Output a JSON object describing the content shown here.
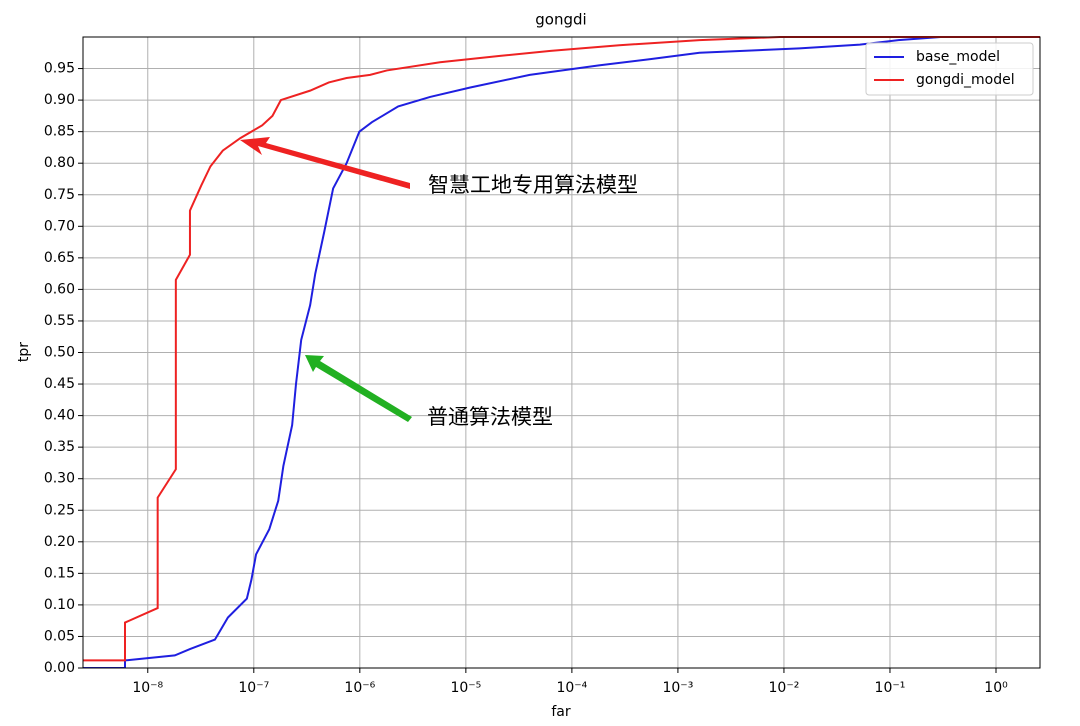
{
  "chart_data": {
    "type": "line",
    "title": "gongdi",
    "x_label": "far",
    "y_label": "tpr",
    "x_scale": "log",
    "grid": true,
    "legend": "upper right",
    "xlim": [
      2.45e-09,
      2.6
    ],
    "ylim": [
      0,
      1.0
    ],
    "xticks": [
      {
        "value": 1e-08,
        "label": "10⁻⁸"
      },
      {
        "value": 1e-07,
        "label": "10⁻⁷"
      },
      {
        "value": 1e-06,
        "label": "10⁻⁶"
      },
      {
        "value": 1e-05,
        "label": "10⁻⁵"
      },
      {
        "value": 0.0001,
        "label": "10⁻⁴"
      },
      {
        "value": 0.001,
        "label": "10⁻³"
      },
      {
        "value": 0.01,
        "label": "10⁻²"
      },
      {
        "value": 0.1,
        "label": "10⁻¹"
      },
      {
        "value": 1,
        "label": "10⁰"
      }
    ],
    "yticks": [
      {
        "value": 0,
        "label": "0.00"
      },
      {
        "value": 0.05,
        "label": "0.05"
      },
      {
        "value": 0.1,
        "label": "0.10"
      },
      {
        "value": 0.15,
        "label": "0.15"
      },
      {
        "value": 0.2,
        "label": "0.20"
      },
      {
        "value": 0.25,
        "label": "0.25"
      },
      {
        "value": 0.3,
        "label": "0.30"
      },
      {
        "value": 0.35,
        "label": "0.35"
      },
      {
        "value": 0.4,
        "label": "0.40"
      },
      {
        "value": 0.45,
        "label": "0.45"
      },
      {
        "value": 0.5,
        "label": "0.50"
      },
      {
        "value": 0.55,
        "label": "0.55"
      },
      {
        "value": 0.6,
        "label": "0.60"
      },
      {
        "value": 0.65,
        "label": "0.65"
      },
      {
        "value": 0.7,
        "label": "0.70"
      },
      {
        "value": 0.75,
        "label": "0.75"
      },
      {
        "value": 0.8,
        "label": "0.80"
      },
      {
        "value": 0.85,
        "label": "0.85"
      },
      {
        "value": 0.9,
        "label": "0.90"
      },
      {
        "value": 0.95,
        "label": "0.95"
      }
    ],
    "series": [
      {
        "name": "base_model",
        "color": "#1f1fe0",
        "x": [
          2.46e-09,
          6.1e-09,
          6.1e-09,
          1.8e-08,
          2.5e-08,
          4.3e-08,
          5.7e-08,
          8.6e-08,
          9.5e-08,
          1.05e-07,
          1.4e-07,
          1.7e-07,
          1.9e-07,
          2.3e-07,
          2.5e-07,
          2.8e-07,
          3.4e-07,
          3.8e-07,
          4.6e-07,
          5.6e-07,
          7.5e-07,
          9.9e-07,
          1.3e-06,
          2.3e-06,
          4.6e-06,
          1.1e-05,
          4e-05,
          0.00018,
          0.00055,
          0.0016,
          0.014,
          0.052,
          0.12,
          0.3
        ],
        "values": [
          0,
          0,
          0.012,
          0.02,
          0.03,
          0.045,
          0.08,
          0.11,
          0.14,
          0.18,
          0.22,
          0.265,
          0.32,
          0.385,
          0.45,
          0.52,
          0.575,
          0.625,
          0.69,
          0.76,
          0.8,
          0.85,
          0.865,
          0.89,
          0.905,
          0.92,
          0.94,
          0.955,
          0.965,
          0.975,
          0.982,
          0.988,
          0.995,
          1.0
        ]
      },
      {
        "name": "gongdi_model",
        "color": "#ee2222",
        "x": [
          2.46e-09,
          6.1e-09,
          6.1e-09,
          1.24e-08,
          1.24e-08,
          1.84e-08,
          1.84e-08,
          2.5e-08,
          2.5e-08,
          3.2e-08,
          3.9e-08,
          5.1e-08,
          7.5e-08,
          1.2e-07,
          1.5e-07,
          1.8e-07,
          3.4e-07,
          5.1e-07,
          7.5e-07,
          1.25e-06,
          1.8e-06,
          5.7e-06,
          2.1e-05,
          6.3e-05,
          0.00028,
          0.0016,
          0.0092,
          2.6
        ],
        "values": [
          0.012,
          0.012,
          0.072,
          0.095,
          0.27,
          0.315,
          0.615,
          0.655,
          0.725,
          0.765,
          0.795,
          0.82,
          0.84,
          0.86,
          0.875,
          0.9,
          0.915,
          0.928,
          0.935,
          0.94,
          0.947,
          0.96,
          0.97,
          0.978,
          0.987,
          0.995,
          1.0,
          1.0
        ]
      }
    ],
    "annotations": [
      "智慧工地专用算法模型",
      "普通算法模型"
    ]
  }
}
